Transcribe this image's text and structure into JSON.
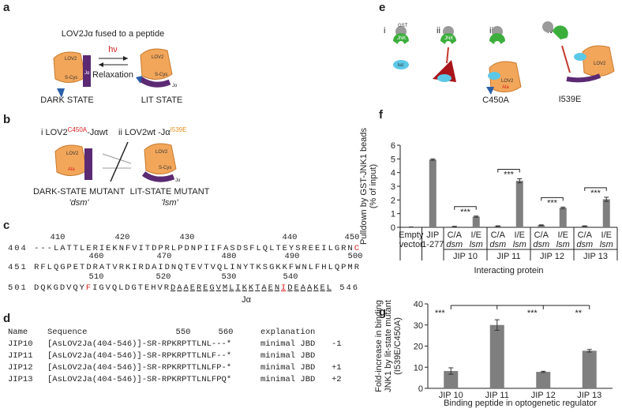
{
  "panel_a": {
    "label": "a",
    "title": "LOV2Jα fused to a peptide",
    "light": "hν",
    "relaxation": "Relaxation",
    "dark": "DARK STATE",
    "lit": "LIT STATE"
  },
  "icon_labels": {
    "lov2": "LOV2",
    "scys": "S-Cys",
    "ja": "Jα",
    "ala": "Ala",
    "gst": "GST",
    "jnk": "JNK",
    "luc": "luc"
  },
  "panel_b": {
    "label": "b",
    "left": [
      "i LOV2",
      "C450A",
      "-Jαwt"
    ],
    "right": [
      "ii LOV2wt -Jα",
      "I539E"
    ],
    "dark": "DARK-STATE MUTANT",
    "dark_abbr": "'dsm'",
    "lit": "LIT-STATE MUTANT",
    "lit_abbr": "'lsm'"
  },
  "panel_c": {
    "label": "c",
    "rows": [
      {
        "numbers": [
          "410",
          "420",
          "430",
          "440",
          "450"
        ],
        "parts": [
          "404 ---LATTLERIEKNFVITDPRLPDNPIIFASDSFLQLTEYSREEILGRN",
          "C"
        ]
      },
      {
        "numbers": [
          "460",
          "470",
          "480",
          "490",
          "500"
        ],
        "parts": [
          "451 RFLQGPETDRATVRKIRDAIDNQTEVTVQLINYTKSGKKFWNLFHLQPMR"
        ]
      },
      {
        "numbers": [
          "510",
          "520",
          "530",
          "540"
        ],
        "parts": [
          "501 DQKGDVQY",
          "F",
          "IGVQLDGTEHVR",
          "DAAEREGVMLIKKTAEN",
          "I",
          "DEAAKEL",
          " 546"
        ]
      }
    ],
    "helix": "Jα"
  },
  "panel_d": {
    "label": "d",
    "header": [
      "Name",
      "Sequence",
      "550",
      "560",
      "explanation"
    ],
    "rows": [
      [
        "JIP10",
        "[AsLOV2Ja(404-546)]-SR-RPKRPTTLNL---*",
        "minimal JBD",
        "-1"
      ],
      [
        "JIP11",
        "[AsLOV2Ja(404-546)]-SR-RPKRPTTLNLF--*",
        "minimal JBD"
      ],
      [
        "JIP12",
        "[AsLOV2Ja(404-546)]-SR-RPKRPTTLNLFP-*",
        "minimal JBD",
        "+1"
      ],
      [
        "JIP13",
        "[AsLOV2Ja(404-546)]-SR-RPKRPTTLNLFPQ*",
        "minimal JBD",
        "+2"
      ]
    ]
  },
  "panel_e": {
    "label": "e",
    "parts": [
      "i",
      "ii",
      "iii",
      "iv"
    ],
    "mutant_iii": "C450A",
    "mutant_iv": "I539E"
  },
  "chart_data": [
    {
      "type": "bar",
      "panel": "f",
      "color": "#7f7f7f",
      "ylabel": [
        "Pulldown by GST-JNK1 beads",
        "(% of input)"
      ],
      "xlabel": "Interacting protein",
      "categories": [
        [
          "Empty",
          "vector"
        ],
        [
          "JIP",
          "1-277"
        ],
        [
          "C/A",
          "dsm"
        ],
        [
          "I/E",
          "lsm"
        ],
        [
          "C/A",
          "dsm"
        ],
        [
          "I/E",
          "lsm"
        ],
        [
          "C/A",
          "dsm"
        ],
        [
          "I/E",
          "lsm"
        ],
        [
          "C/A",
          "dsm"
        ],
        [
          "I/E",
          "lsm"
        ]
      ],
      "values": [
        0.02,
        4.95,
        0.05,
        0.78,
        0.08,
        3.4,
        0.15,
        1.42,
        0.08,
        2.05
      ],
      "errors": [
        0.01,
        0.05,
        0.02,
        0.04,
        0.03,
        0.15,
        0.03,
        0.06,
        0.03,
        0.15
      ],
      "groups": [
        "JIP 10",
        "JIP 11",
        "JIP 12",
        "JIP 13"
      ],
      "significance": [
        "***",
        "***",
        "***",
        "***"
      ],
      "ylim": [
        0,
        6
      ],
      "yticks": [
        0,
        1,
        2,
        3,
        4,
        5,
        6
      ]
    },
    {
      "type": "bar",
      "panel": "g",
      "color": "#7f7f7f",
      "ylabel": [
        "Fold-increase in binding",
        "JNK1 by lit-state mutant",
        "(I539E/C450A)"
      ],
      "xlabel": "Binding peptide in optogenetic regulator",
      "categories": [
        "JIP 10",
        "JIP 11",
        "JIP 12",
        "JIP 13"
      ],
      "values": [
        8.2,
        30,
        7.8,
        17.8
      ],
      "errors": [
        1.5,
        2.5,
        0.3,
        0.6
      ],
      "significance": [
        "***",
        null,
        "***",
        "**"
      ],
      "ylim": [
        0,
        40
      ],
      "yticks": [
        0,
        10,
        20,
        30,
        40
      ]
    }
  ]
}
